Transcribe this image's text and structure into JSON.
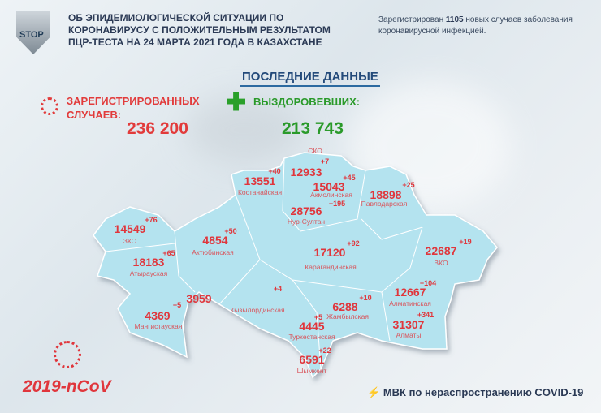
{
  "header": {
    "logo_text": "STOP",
    "title": "ОБ ЭПИДЕМИОЛОГИЧЕСКОЙ СИТУАЦИИ ПО КОРОНАВИРУСУ С ПОЛОЖИТЕЛЬНЫМ РЕЗУЛЬТАТОМ ПЦР-ТЕСТА НА 24 МАРТА 2021 ГОДА В КАЗАХСТАНЕ",
    "note_prefix": "Зарегистрирован",
    "note_count": "1105",
    "note_suffix": "новых случаев заболевания коронавирусной инфекцией."
  },
  "summary": {
    "heading": "ПОСЛЕДНИЕ ДАННЫЕ",
    "registered_label": "ЗАРЕГИСТРИРОВАННЫХ СЛУЧАЕВ:",
    "registered_value": "236 200",
    "recovered_label": "ВЫЗДОРОВЕВШИХ:",
    "recovered_value": "213 743",
    "colors": {
      "registered": "#e23b3b",
      "recovered": "#2a9a2a",
      "map_fill": "#b4e3ef"
    }
  },
  "regions": [
    {
      "name": "СКО",
      "total": "12933",
      "delta": "+7"
    },
    {
      "name": "Костанайская",
      "total": "13551",
      "delta": "+40"
    },
    {
      "name": "Акмолинская",
      "total": "15043",
      "delta": "+45"
    },
    {
      "name": "Павлодарская",
      "total": "18898",
      "delta": "+25"
    },
    {
      "name": "Нур-Султан",
      "total": "28756",
      "delta": "+195"
    },
    {
      "name": "ЗКО",
      "total": "14549",
      "delta": "+76"
    },
    {
      "name": "Актюбинская",
      "total": "4854",
      "delta": "+50"
    },
    {
      "name": "Карагандинская",
      "total": "17120",
      "delta": "+92"
    },
    {
      "name": "ВКО",
      "total": "22687",
      "delta": "+19"
    },
    {
      "name": "Атырауская",
      "total": "18183",
      "delta": "+65"
    },
    {
      "name": "Алматинская",
      "total": "12667",
      "delta": "+104"
    },
    {
      "name": "Кызылординская",
      "total": "3959",
      "delta": "+4"
    },
    {
      "name": "Жамбылская",
      "total": "6288",
      "delta": "+10"
    },
    {
      "name": "Мангистауская",
      "total": "4369",
      "delta": "+5"
    },
    {
      "name": "Туркестанская",
      "total": "4445",
      "delta": "+5"
    },
    {
      "name": "Алматы",
      "total": "31307",
      "delta": "+341"
    },
    {
      "name": "Шымкент",
      "total": "6591",
      "delta": "+22"
    }
  ],
  "footer": {
    "virus_label": "2019-nCoV",
    "commission": "МВК по нераспространению COVID-19"
  }
}
